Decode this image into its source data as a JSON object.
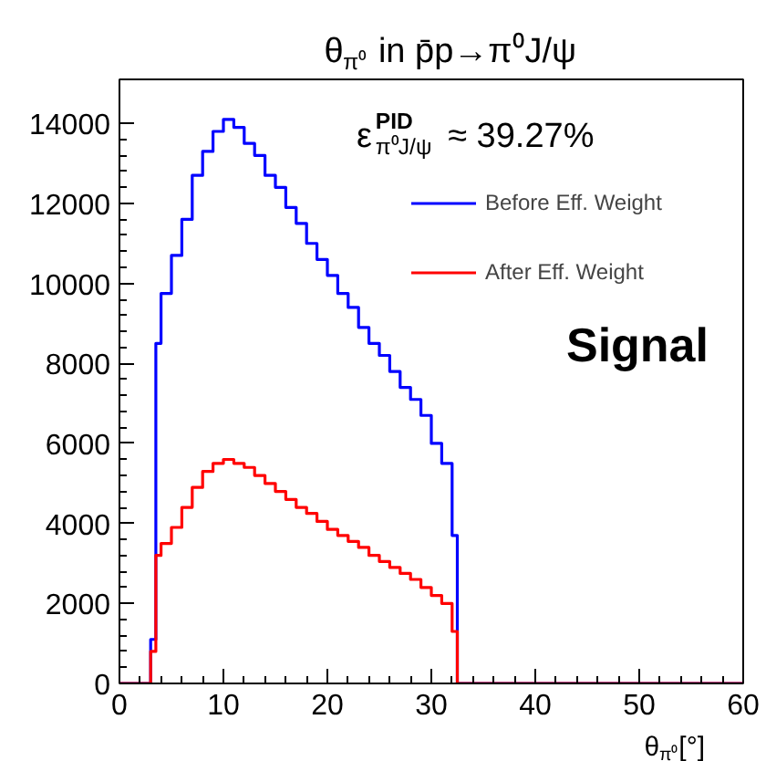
{
  "chart_data": {
    "type": "histogram",
    "title": "θ$_{π⁰}$ in p̄p→π⁰J/ψ",
    "xlabel": "θ$_{π⁰}$[°]",
    "bins": [
      0,
      3,
      3.5,
      4,
      5,
      6,
      7,
      8,
      9,
      10,
      11,
      12,
      13,
      14,
      15,
      16,
      17,
      18,
      19,
      20,
      21,
      22,
      23,
      24,
      25,
      26,
      27,
      28,
      29,
      30,
      31,
      32,
      32.5,
      60
    ],
    "series": [
      {
        "name": "Before Eff. Weight",
        "color": "#0000ff",
        "values": [
          0,
          1100,
          8500,
          9750,
          10700,
          11600,
          12700,
          13300,
          13800,
          14100,
          13900,
          13500,
          13200,
          12700,
          12400,
          11900,
          11500,
          11000,
          10600,
          10200,
          9750,
          9400,
          8900,
          8500,
          8200,
          7800,
          7400,
          7100,
          6700,
          6000,
          5500,
          3700,
          0
        ]
      },
      {
        "name": "After Eff. Weight",
        "color": "#ff0000",
        "values": [
          0,
          800,
          3200,
          3500,
          3900,
          4400,
          4900,
          5300,
          5500,
          5600,
          5500,
          5400,
          5200,
          5000,
          4800,
          4600,
          4400,
          4250,
          4050,
          3850,
          3700,
          3550,
          3400,
          3200,
          3050,
          2900,
          2750,
          2600,
          2400,
          2200,
          2000,
          1300,
          0
        ]
      }
    ],
    "annotations": [
      "ε$^{PID}$$_{π⁰J/ψ}$ ≈ 39.27%",
      "Signal"
    ],
    "xlim": [
      0,
      60
    ],
    "xticks": [
      0,
      10,
      20,
      30,
      40,
      50,
      60
    ],
    "ylim": [
      0,
      15100
    ],
    "yticks": [
      0,
      2000,
      4000,
      6000,
      8000,
      10000,
      12000,
      14000
    ],
    "grid": false,
    "legend": "top right"
  }
}
